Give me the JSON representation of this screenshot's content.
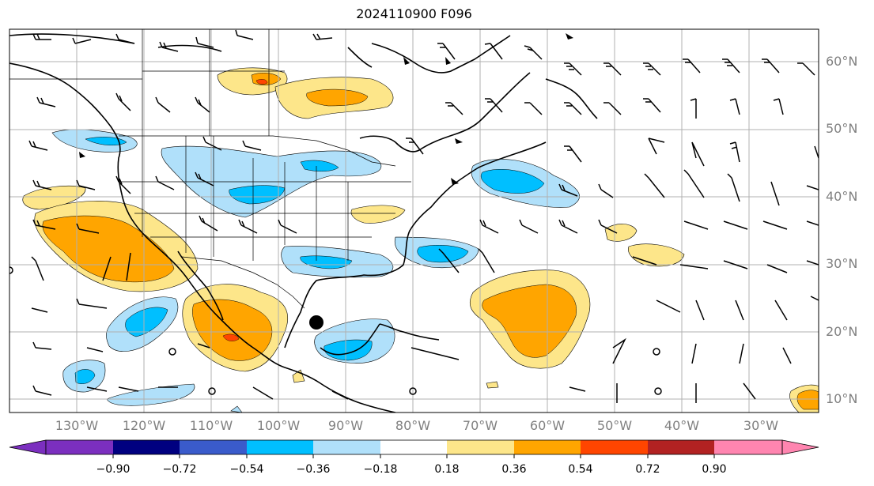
{
  "title": "2024110900 F096",
  "lat_labels": [
    "60°N",
    "50°N",
    "40°N",
    "30°N",
    "20°N",
    "10°N"
  ],
  "lon_labels": [
    "130°W",
    "120°W",
    "110°W",
    "100°W",
    "90°W",
    "80°W",
    "70°W",
    "60°W",
    "50°W",
    "40°W",
    "30°W"
  ],
  "colorbar": {
    "ticks": [
      "−0.90",
      "−0.72",
      "−0.54",
      "−0.36",
      "−0.18",
      "0.18",
      "0.36",
      "0.54",
      "0.72",
      "0.90"
    ],
    "colors": [
      "#7b2fbf",
      "#000080",
      "#3a5bcb",
      "#00bfff",
      "#b0e0fa",
      "#ffffff",
      "#fde68a",
      "#ffa500",
      "#ff4500",
      "#b22222",
      "#ff85b0"
    ]
  },
  "colors": {
    "light_blue": "#b0e0fa",
    "blue": "#00bfff",
    "yellow": "#fde68a",
    "orange": "#ffa500",
    "red": "#ff4500"
  }
}
